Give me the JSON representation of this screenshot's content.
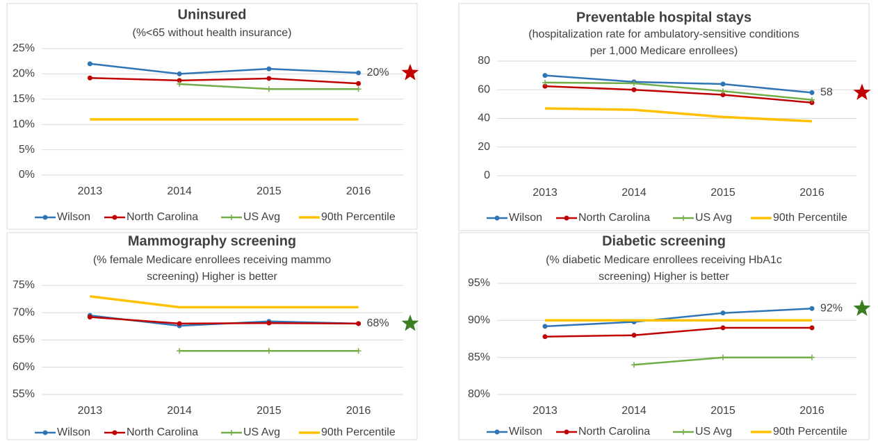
{
  "chart_data": [
    {
      "type": "line",
      "title": "Uninsured",
      "subtitle": [
        "(%<65 without health insurance)"
      ],
      "categories": [
        "2013",
        "2014",
        "2015",
        "2016"
      ],
      "ylim": [
        0,
        25
      ],
      "yticks": [
        {
          "value": 0,
          "label": "0%"
        },
        {
          "value": 5,
          "label": "5%"
        },
        {
          "value": 10,
          "label": "10%"
        },
        {
          "value": 15,
          "label": "15%"
        },
        {
          "value": 20,
          "label": "20%"
        },
        {
          "value": 25,
          "label": "25%"
        }
      ],
      "grid": true,
      "star_color": "#c00000",
      "series": [
        {
          "name": "Wilson",
          "color": "#2e75b6",
          "values": [
            22,
            20,
            21,
            20.2
          ],
          "value_labels": [
            null,
            null,
            null,
            "20%"
          ]
        },
        {
          "name": "North Carolina",
          "color": "#c00000",
          "values": [
            19.2,
            18.7,
            19.1,
            18.1
          ]
        },
        {
          "name": "US Avg",
          "color": "#70ad47",
          "values": [
            null,
            18,
            17,
            17
          ]
        },
        {
          "name": "90th Percentile",
          "color": "#ffc000",
          "values": [
            11,
            11,
            11,
            11
          ]
        }
      ]
    },
    {
      "type": "line",
      "title": "Preventable hospital stays",
      "subtitle": [
        "(hospitalization rate for ambulatory-sensitive conditions",
        "per 1,000 Medicare enrollees)"
      ],
      "categories": [
        "2013",
        "2014",
        "2015",
        "2016"
      ],
      "ylim": [
        0,
        80
      ],
      "yticks": [
        0,
        20,
        40,
        60,
        80
      ],
      "grid": true,
      "star_color": "#c00000",
      "series": [
        {
          "name": "Wilson",
          "color": "#2e75b6",
          "values": [
            70,
            65.5,
            64,
            58
          ],
          "value_labels": [
            null,
            null,
            null,
            "58"
          ]
        },
        {
          "name": "North Carolina",
          "color": "#c00000",
          "values": [
            62.5,
            60,
            56.5,
            51
          ]
        },
        {
          "name": "US Avg",
          "color": "#70ad47",
          "values": [
            65,
            64.5,
            59,
            53
          ]
        },
        {
          "name": "90th Percentile",
          "color": "#ffc000",
          "values": [
            47,
            46,
            41,
            38
          ]
        }
      ]
    },
    {
      "type": "line",
      "title": "Mammography screening",
      "subtitle": [
        "(% female Medicare enrollees receiving mammo",
        "screening) Higher is better"
      ],
      "categories": [
        "2013",
        "2014",
        "2015",
        "2016"
      ],
      "ylim": [
        55,
        75
      ],
      "yticks": [
        {
          "value": 55,
          "label": "55%"
        },
        {
          "value": 60,
          "label": "60%"
        },
        {
          "value": 65,
          "label": "65%"
        },
        {
          "value": 70,
          "label": "70%"
        },
        {
          "value": 75,
          "label": "75%"
        }
      ],
      "grid": true,
      "star_color": "#3a7d22",
      "series": [
        {
          "name": "Wilson",
          "color": "#2e75b6",
          "values": [
            69.5,
            67.6,
            68.4,
            68
          ],
          "value_labels": [
            null,
            null,
            null,
            "68%"
          ]
        },
        {
          "name": "North Carolina",
          "color": "#c00000",
          "values": [
            69.2,
            68,
            68.1,
            68
          ]
        },
        {
          "name": "US Avg",
          "color": "#70ad47",
          "values": [
            null,
            63,
            63,
            63
          ]
        },
        {
          "name": "90th Percentile",
          "color": "#ffc000",
          "values": [
            73,
            71,
            71,
            71
          ]
        }
      ]
    },
    {
      "type": "line",
      "title": "Diabetic screening",
      "subtitle": [
        "(% diabetic Medicare enrollees receiving HbA1c",
        "screening) Higher is better"
      ],
      "categories": [
        "2013",
        "2014",
        "2015",
        "2016"
      ],
      "ylim": [
        80,
        95
      ],
      "yticks": [
        {
          "value": 80,
          "label": "80%"
        },
        {
          "value": 85,
          "label": "85%"
        },
        {
          "value": 90,
          "label": "90%"
        },
        {
          "value": 95,
          "label": "95%"
        }
      ],
      "grid": true,
      "star_color": "#3a7d22",
      "series": [
        {
          "name": "Wilson",
          "color": "#2e75b6",
          "values": [
            89.2,
            89.8,
            91,
            91.6
          ],
          "value_labels": [
            null,
            null,
            null,
            "92%"
          ]
        },
        {
          "name": "North Carolina",
          "color": "#c00000",
          "values": [
            87.8,
            88,
            89,
            89
          ]
        },
        {
          "name": "US Avg",
          "color": "#70ad47",
          "values": [
            null,
            84,
            85,
            85
          ]
        },
        {
          "name": "90th Percentile",
          "color": "#ffc000",
          "values": [
            90,
            90,
            90,
            90
          ]
        }
      ]
    }
  ]
}
